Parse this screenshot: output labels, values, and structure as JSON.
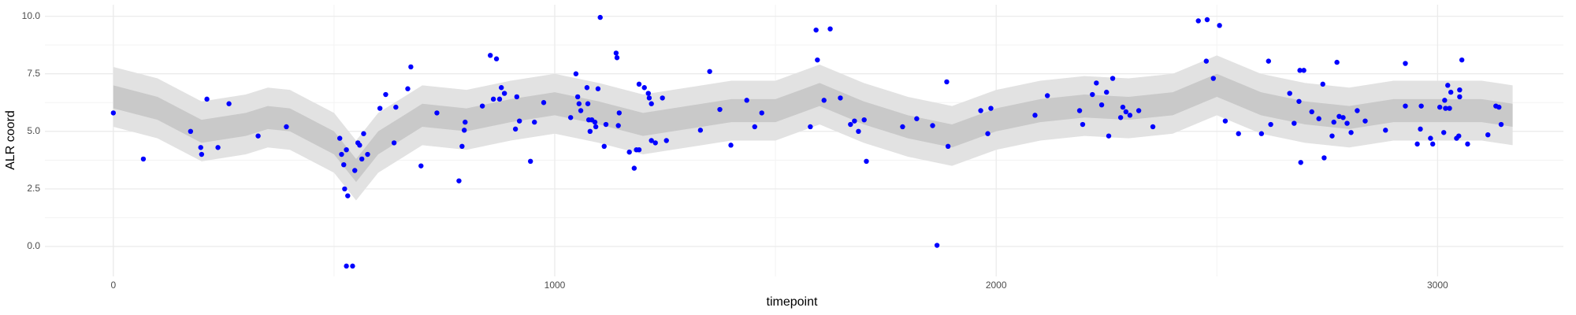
{
  "chart_data": {
    "type": "scatter",
    "x_label": "timepoint",
    "y_label": "ALR coord",
    "xlim": [
      -155,
      3285
    ],
    "ylim": [
      -1.3,
      10.5
    ],
    "xticks": [
      0,
      1000,
      2000,
      3000
    ],
    "yticks": [
      {
        "value": 0,
        "label": "0.0"
      },
      2.5,
      {
        "value": 5,
        "label": "5.0"
      },
      7.5,
      {
        "value": 10,
        "label": "10.0"
      }
    ],
    "grid": true,
    "color": "#0000ff",
    "x": [
      0,
      68,
      175,
      198,
      200,
      212,
      237,
      262,
      328,
      392,
      513,
      517,
      522,
      524,
      528,
      531,
      528,
      542,
      547,
      554,
      558,
      563,
      567,
      576,
      604,
      617,
      636,
      640,
      667,
      674,
      697,
      733,
      783,
      790,
      795,
      797,
      836,
      854,
      868,
      861,
      875,
      879,
      886,
      911,
      914,
      920,
      945,
      954,
      975,
      1036,
      1048,
      1052,
      1055,
      1059,
      1073,
      1075,
      1080,
      1077,
      1084,
      1091,
      1093,
      1098,
      1103,
      1112,
      1116,
      1139,
      1141,
      1144,
      1146,
      1169,
      1180,
      1185,
      1191,
      1191,
      1203,
      1214,
      1219,
      1212,
      1219,
      1228,
      1244,
      1253,
      1351,
      1374,
      1330,
      1399,
      1435,
      1453,
      1469,
      1579,
      1592,
      1595,
      1610,
      1624,
      1647,
      1670,
      1679,
      1688,
      1701,
      1706,
      1788,
      1820,
      1856,
      1866,
      1888,
      1891,
      1965,
      1981,
      1988,
      2088,
      2116,
      2189,
      2196,
      2218,
      2227,
      2239,
      2250,
      2255,
      2264,
      2282,
      2287,
      2294,
      2303,
      2323,
      2355,
      2458,
      2478,
      2476,
      2492,
      2506,
      2519,
      2549,
      2601,
      2617,
      2622,
      2665,
      2675,
      2686,
      2690,
      2688,
      2697,
      2715,
      2731,
      2740,
      2743,
      2761,
      2765,
      2772,
      2777,
      2786,
      2795,
      2804,
      2818,
      2836,
      2882,
      2927,
      2927,
      2954,
      2961,
      2963,
      2984,
      2989,
      3005,
      3014,
      3016,
      3018,
      3023,
      3027,
      3030,
      3043,
      3048,
      3050,
      3050,
      3055,
      3068,
      3114,
      3132,
      3139,
      3144
    ],
    "values": [
      5.8,
      3.8,
      5.0,
      4.3,
      4.0,
      6.4,
      4.3,
      6.2,
      4.8,
      5.2,
      4.7,
      4.0,
      3.55,
      2.5,
      4.2,
      2.2,
      -0.85,
      -0.85,
      3.3,
      4.5,
      4.4,
      3.8,
      4.9,
      4.0,
      6.0,
      6.6,
      4.5,
      6.05,
      6.85,
      7.8,
      3.5,
      5.8,
      2.85,
      4.35,
      5.05,
      5.4,
      6.1,
      8.3,
      8.15,
      6.4,
      6.4,
      6.9,
      6.65,
      5.1,
      6.5,
      5.45,
      3.7,
      5.4,
      6.25,
      5.6,
      7.5,
      6.5,
      6.2,
      5.9,
      6.9,
      6.2,
      5.0,
      5.5,
      5.5,
      5.4,
      5.2,
      6.85,
      9.95,
      4.35,
      5.3,
      8.4,
      8.2,
      5.25,
      5.8,
      4.1,
      3.4,
      4.2,
      4.2,
      7.05,
      6.9,
      6.45,
      6.2,
      6.65,
      4.6,
      4.5,
      6.45,
      4.6,
      7.6,
      5.95,
      5.05,
      4.4,
      6.35,
      5.2,
      5.8,
      5.2,
      9.4,
      8.1,
      6.35,
      9.45,
      6.45,
      5.3,
      5.45,
      5.0,
      5.5,
      3.7,
      5.2,
      5.55,
      5.25,
      0.05,
      7.15,
      4.35,
      5.9,
      4.9,
      6.0,
      5.7,
      6.55,
      5.9,
      5.3,
      6.6,
      7.1,
      6.15,
      6.7,
      4.8,
      7.3,
      5.6,
      6.05,
      5.85,
      5.7,
      5.9,
      5.2,
      9.8,
      9.85,
      8.05,
      7.3,
      9.6,
      5.45,
      4.9,
      4.9,
      8.05,
      5.3,
      6.65,
      5.35,
      6.3,
      3.65,
      7.65,
      7.65,
      5.85,
      5.55,
      7.05,
      3.85,
      4.8,
      5.4,
      8.0,
      5.65,
      5.6,
      5.35,
      4.95,
      5.9,
      5.45,
      5.05,
      7.95,
      6.1,
      4.45,
      5.1,
      6.1,
      4.7,
      4.45,
      6.05,
      4.95,
      6.35,
      6.0,
      7.0,
      6.0,
      6.7,
      4.7,
      4.8,
      6.5,
      6.8,
      8.1,
      4.45,
      4.85,
      6.1,
      6.05,
      5.3
    ],
    "bands": [
      {
        "color": "#e2e2e2",
        "x": [
          0,
          100,
          200,
          300,
          350,
          400,
          500,
          550,
          600,
          700,
          800,
          900,
          1000,
          1100,
          1200,
          1300,
          1400,
          1500,
          1600,
          1700,
          1800,
          1900,
          2000,
          2100,
          2200,
          2300,
          2400,
          2500,
          2600,
          2700,
          2800,
          2900,
          3000,
          3100,
          3170
        ],
        "lower": [
          5.2,
          4.7,
          3.7,
          4.0,
          4.3,
          4.2,
          3.2,
          2.0,
          3.2,
          4.4,
          4.2,
          4.6,
          4.9,
          4.5,
          4.0,
          4.3,
          4.6,
          4.6,
          5.3,
          4.5,
          3.9,
          3.5,
          4.2,
          4.6,
          4.8,
          4.7,
          4.9,
          5.7,
          4.9,
          4.5,
          4.3,
          4.6,
          4.6,
          4.6,
          4.4
        ],
        "upper": [
          7.8,
          7.3,
          6.3,
          6.6,
          6.9,
          6.8,
          5.8,
          4.6,
          5.8,
          7.0,
          6.8,
          7.2,
          7.5,
          7.1,
          6.6,
          6.9,
          7.2,
          7.2,
          7.9,
          7.1,
          6.5,
          6.1,
          6.8,
          7.2,
          7.4,
          7.3,
          7.5,
          8.3,
          7.5,
          7.1,
          6.9,
          7.2,
          7.2,
          7.2,
          7.0
        ]
      },
      {
        "color": "#c9c9c9",
        "x": [
          0,
          100,
          200,
          300,
          350,
          400,
          500,
          550,
          600,
          700,
          800,
          900,
          1000,
          1100,
          1200,
          1300,
          1400,
          1500,
          1600,
          1700,
          1800,
          1900,
          2000,
          2100,
          2200,
          2300,
          2400,
          2500,
          2600,
          2700,
          2800,
          2900,
          3000,
          3100,
          3170
        ],
        "lower": [
          6.0,
          5.5,
          4.5,
          4.8,
          5.1,
          5.0,
          4.0,
          2.8,
          4.0,
          5.2,
          5.0,
          5.4,
          5.7,
          5.3,
          4.8,
          5.1,
          5.4,
          5.4,
          6.1,
          5.3,
          4.7,
          4.3,
          5.0,
          5.4,
          5.6,
          5.5,
          5.7,
          6.5,
          5.7,
          5.3,
          5.1,
          5.4,
          5.4,
          5.4,
          5.2
        ],
        "upper": [
          7.0,
          6.5,
          5.5,
          5.8,
          6.1,
          6.0,
          5.0,
          3.8,
          5.0,
          6.2,
          6.0,
          6.4,
          6.7,
          6.3,
          5.8,
          6.1,
          6.4,
          6.4,
          7.1,
          6.3,
          5.7,
          5.3,
          6.0,
          6.4,
          6.6,
          6.5,
          6.7,
          7.5,
          6.7,
          6.3,
          6.1,
          6.4,
          6.4,
          6.4,
          6.2
        ]
      }
    ]
  }
}
